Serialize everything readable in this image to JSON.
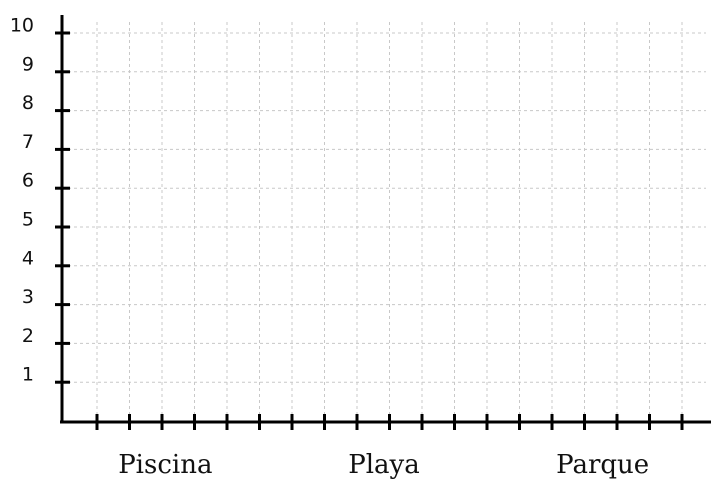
{
  "chart_data": {
    "type": "bar",
    "categories": [
      "Piscina",
      "Playa",
      "Parque"
    ],
    "ylim": [
      0,
      10
    ],
    "yticks": [
      1,
      2,
      3,
      4,
      5,
      6,
      7,
      8,
      9,
      10
    ],
    "grid": true
  }
}
